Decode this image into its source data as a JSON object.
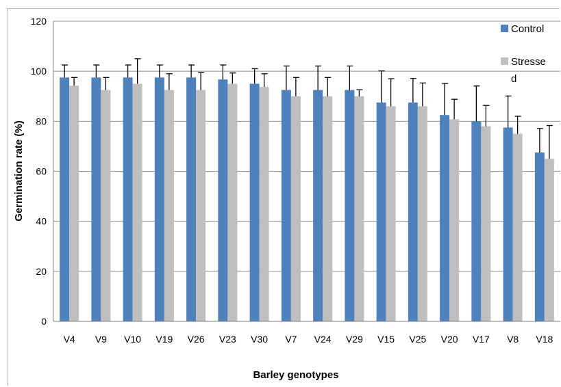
{
  "chart_data": {
    "type": "bar",
    "title": "",
    "xlabel": "Barley genotypes",
    "ylabel": "Germination rate (%)",
    "ylim": [
      0,
      120
    ],
    "yticks": [
      0,
      20,
      40,
      60,
      80,
      100,
      120
    ],
    "grid": true,
    "legend_position": "top-right",
    "categories": [
      "V4",
      "V9",
      "V10",
      "V19",
      "V26",
      "V23",
      "V30",
      "V7",
      "V24",
      "V29",
      "V15",
      "V25",
      "V20",
      "V17",
      "V8",
      "V18"
    ],
    "series": [
      {
        "name": "Control",
        "color": "#4f81bd",
        "values": [
          97.5,
          97.5,
          97.5,
          97.5,
          97.5,
          96.7,
          95.0,
          92.5,
          92.5,
          92.5,
          87.5,
          87.5,
          82.5,
          80.0,
          77.5,
          67.5
        ],
        "errors": [
          5.0,
          5.0,
          5.0,
          5.0,
          5.0,
          5.8,
          6.0,
          9.6,
          9.6,
          9.6,
          12.6,
          9.6,
          12.6,
          14.1,
          12.6,
          9.6
        ]
      },
      {
        "name": "Stressed",
        "legend_lines": [
          "Stresse",
          "d"
        ],
        "color": "#bfbfbf",
        "values": [
          94.2,
          92.5,
          95.0,
          92.5,
          92.5,
          95.0,
          93.7,
          90.0,
          90.0,
          90.0,
          86.0,
          86.0,
          80.8,
          78.0,
          75.0,
          65.0
        ],
        "errors": [
          3.3,
          5.0,
          10.0,
          6.5,
          7.0,
          4.3,
          5.3,
          7.5,
          7.5,
          2.6,
          11.0,
          9.3,
          8.0,
          8.3,
          7.0,
          13.3
        ]
      }
    ]
  }
}
